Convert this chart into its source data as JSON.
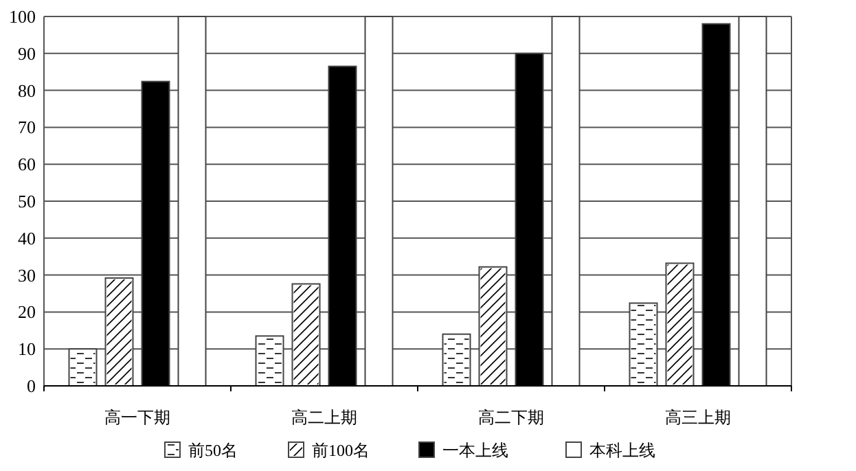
{
  "chart_data": {
    "type": "bar",
    "categories": [
      "高一下期",
      "高二上期",
      "高二下期",
      "高三上期"
    ],
    "series": [
      {
        "name": "前50名",
        "color": "#ffffff",
        "values": [
          10,
          13.5,
          14,
          22.4
        ]
      },
      {
        "name": "前100名",
        "color": "#ffffff",
        "values": [
          29.2,
          27.6,
          32.2,
          33.2
        ]
      },
      {
        "name": "一本上线",
        "color": "#000000",
        "values": [
          82.4,
          86.5,
          90,
          98
        ]
      },
      {
        "name": "本科上线",
        "color": "#ffffff",
        "values": [
          100,
          100,
          100,
          100
        ]
      }
    ],
    "ylim": [
      0,
      100
    ],
    "yticks": [
      0,
      10,
      20,
      30,
      40,
      50,
      60,
      70,
      80,
      90,
      100
    ],
    "grid": "y",
    "legend": "bottom"
  }
}
